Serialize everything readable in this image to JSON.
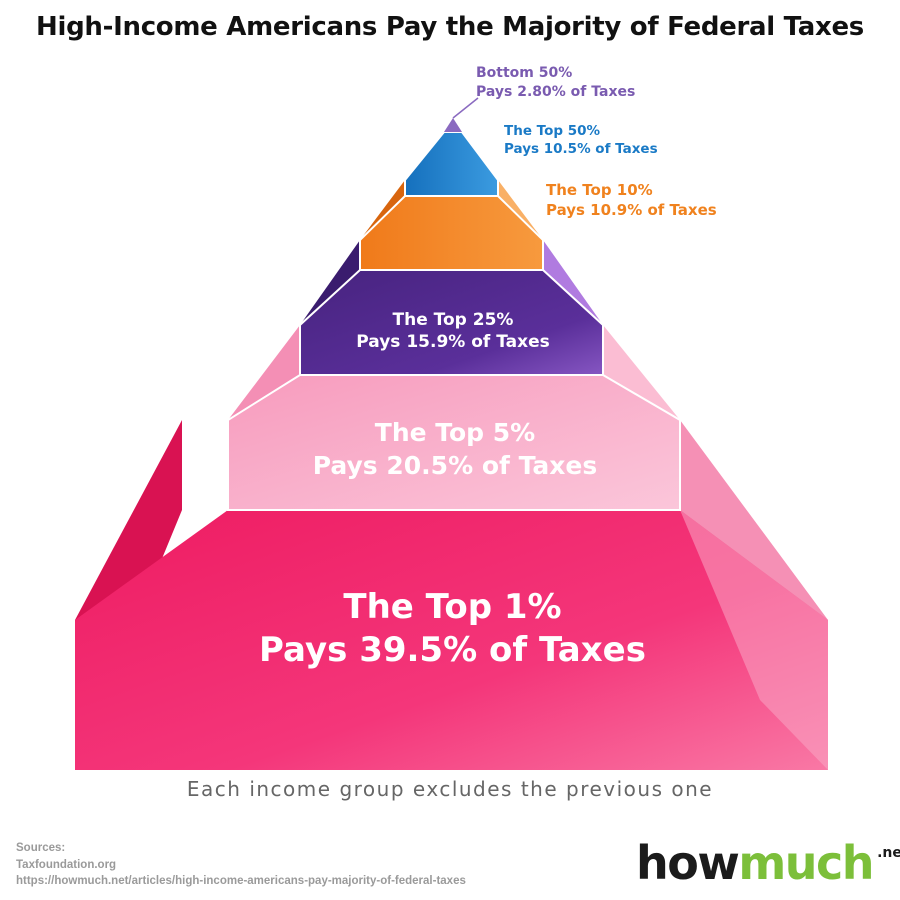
{
  "title": "High-Income Americans Pay the Majority of Federal Taxes",
  "tiers": [
    {
      "line1": "Bottom 50%",
      "line2": "Pays 2.80% of Taxes",
      "color": "#7a5bb0",
      "share_pct": 2.8
    },
    {
      "line1": "The Top 50%",
      "line2": "Pays 10.5% of Taxes",
      "color": "#1a7ac6",
      "share_pct": 10.5
    },
    {
      "line1": "The Top 10%",
      "line2": "Pays 10.9% of Taxes",
      "color": "#f0821e",
      "share_pct": 10.9
    },
    {
      "line1": "The Top 25%",
      "line2": "Pays 15.9% of Taxes",
      "color": "#4f2a8c",
      "share_pct": 15.9
    },
    {
      "line1": "The Top 5%",
      "line2": "Pays 20.5% of Taxes",
      "color": "#f7a6c4",
      "share_pct": 20.5
    },
    {
      "line1": "The Top 1%",
      "line2": "Pays 39.5% of Taxes",
      "color": "#f21e66",
      "share_pct": 39.5
    }
  ],
  "note": "Each income group excludes the previous one",
  "sources": {
    "heading": "Sources:",
    "line1": "Taxfoundation.org",
    "line2": "https://howmuch.net/articles/high-income-americans-pay-majority-of-federal-taxes"
  },
  "logo": {
    "part1": "how",
    "part2": "much",
    "suffix": ".net"
  }
}
